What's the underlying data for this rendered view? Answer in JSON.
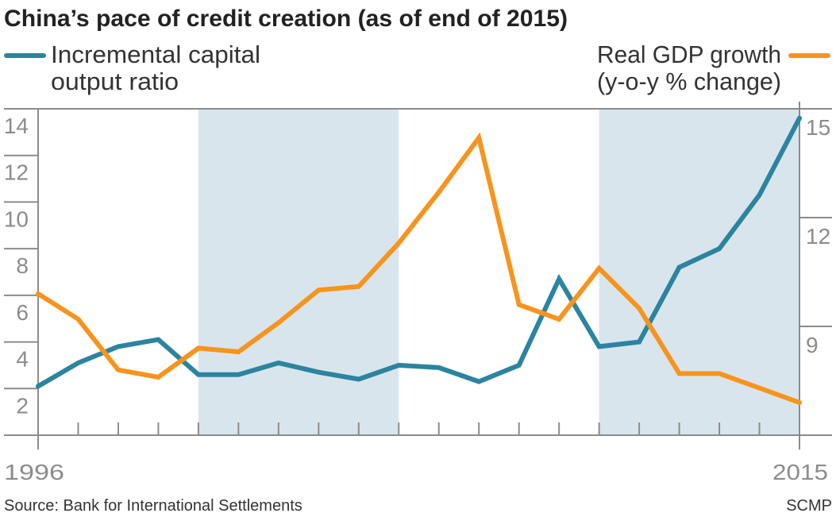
{
  "chart_data": {
    "type": "line",
    "title": "China’s pace of credit creation (as of end of 2015)",
    "x": [
      1996,
      1997,
      1998,
      1999,
      2000,
      2001,
      2002,
      2003,
      2004,
      2005,
      2006,
      2007,
      2008,
      2009,
      2010,
      2011,
      2012,
      2013,
      2014,
      2015
    ],
    "x_tick_labels": [
      "1996",
      "2015"
    ],
    "series": [
      {
        "name": "Incremental capital output ratio",
        "axis": "left",
        "color": "#2b84a0",
        "values": [
          2.1,
          3.1,
          3.8,
          4.1,
          2.6,
          2.6,
          3.1,
          2.7,
          2.4,
          3.0,
          2.9,
          2.3,
          3.0,
          6.7,
          3.8,
          4.0,
          7.2,
          8.0,
          10.3,
          13.6
        ]
      },
      {
        "name": "Real GDP growth (y-o-y % change)",
        "axis": "right",
        "color": "#f7941d",
        "values": [
          9.9,
          9.2,
          7.8,
          7.6,
          8.4,
          8.3,
          9.1,
          10.0,
          10.1,
          11.3,
          12.7,
          14.2,
          9.6,
          9.2,
          10.6,
          9.5,
          7.7,
          7.7,
          7.3,
          6.9
        ]
      }
    ],
    "legend": {
      "left": {
        "line1": "Incremental capital",
        "line2": "output ratio"
      },
      "right": {
        "line1": "Real GDP growth",
        "line2": "(y-o-y % change)"
      }
    },
    "left_axis": {
      "ylim": [
        0,
        14
      ],
      "ticks": [
        "2",
        "4",
        "6",
        "8",
        "10",
        "12",
        "14"
      ]
    },
    "right_axis": {
      "ylim": [
        6,
        15
      ],
      "ticks": [
        "9",
        "12",
        "15"
      ]
    },
    "shaded_periods": [
      [
        2000,
        2005
      ],
      [
        2010,
        2015
      ]
    ],
    "shade_color": "#d9e5ec",
    "grid": false
  },
  "footer": {
    "source": "Source: Bank for International Settlements",
    "credit": "SCMP"
  }
}
